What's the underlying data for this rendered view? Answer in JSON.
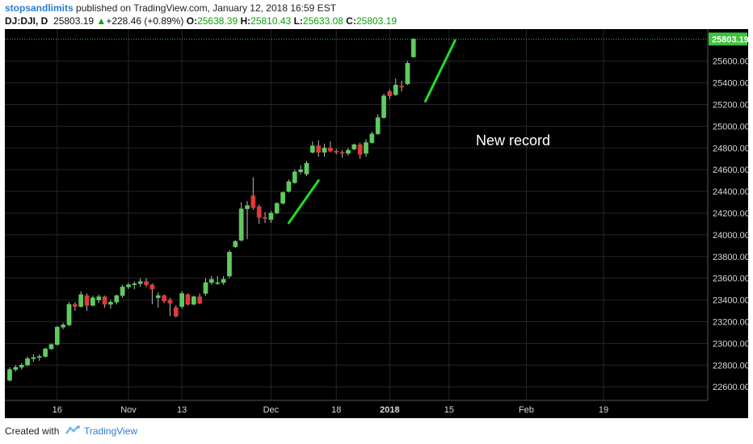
{
  "header": {
    "author": "stopsandlimits",
    "published": "published on TradingView.com, January 12, 2018 16:59 EST",
    "symbol": "DJ:DJI, D",
    "last": "25803.19",
    "change": "+228.46 (+0.89%)",
    "o_label": "O:",
    "o_value": "25638.39",
    "h_label": "H:",
    "h_value": "25810.43",
    "l_label": "L:",
    "l_value": "25633.08",
    "c_label": "C:",
    "c_value": "25803.19"
  },
  "footer": {
    "created_with": "Created with",
    "brand": "TradingView"
  },
  "colors": {
    "up": "#5ecb5e",
    "down": "#e03a3a",
    "background": "#000000",
    "annotation": "#22dd22",
    "price_line": "#3fc23f"
  },
  "chart_data": {
    "type": "candlestick",
    "ylim": [
      22475,
      25895
    ],
    "yticks": [
      22600,
      22800,
      23000,
      23200,
      23400,
      23600,
      23800,
      24000,
      24200,
      24400,
      24600,
      24800,
      25000,
      25200,
      25400,
      25600
    ],
    "ytick_labels": [
      "22600.00",
      "22800.00",
      "23000.00",
      "23200.00",
      "23400.00",
      "23600.00",
      "23800.00",
      "24000.00",
      "24200.00",
      "24400.00",
      "24600.00",
      "24800.00",
      "25000.00",
      "25200.00",
      "25400.00",
      "25600.00"
    ],
    "xticks": [
      {
        "label": "16",
        "index": 8
      },
      {
        "label": "Nov",
        "index": 20
      },
      {
        "label": "13",
        "index": 29
      },
      {
        "label": "Dec",
        "index": 44
      },
      {
        "label": "18",
        "index": 55
      },
      {
        "label": "2018",
        "index": 64
      },
      {
        "label": "15",
        "index": 74
      },
      {
        "label": "Feb",
        "index": 87
      },
      {
        "label": "19",
        "index": 100
      }
    ],
    "last_price_label": "25803.19",
    "last_price": 25803.19,
    "annotation": "New record",
    "trend_lines": [
      {
        "from": [
          47,
          24110
        ],
        "to": [
          52,
          24500
        ]
      },
      {
        "from": [
          70,
          25230
        ],
        "to": [
          75,
          25790
        ]
      }
    ],
    "candles": [
      {
        "o": 22660,
        "h": 22780,
        "l": 22650,
        "c": 22760
      },
      {
        "o": 22760,
        "h": 22800,
        "l": 22740,
        "c": 22780
      },
      {
        "o": 22780,
        "h": 22820,
        "l": 22760,
        "c": 22800
      },
      {
        "o": 22800,
        "h": 22880,
        "l": 22790,
        "c": 22860
      },
      {
        "o": 22860,
        "h": 22900,
        "l": 22830,
        "c": 22870
      },
      {
        "o": 22870,
        "h": 22900,
        "l": 22840,
        "c": 22880
      },
      {
        "o": 22880,
        "h": 22960,
        "l": 22870,
        "c": 22950
      },
      {
        "o": 22950,
        "h": 23000,
        "l": 22940,
        "c": 22990
      },
      {
        "o": 22990,
        "h": 23160,
        "l": 22980,
        "c": 23150
      },
      {
        "o": 23150,
        "h": 23190,
        "l": 23130,
        "c": 23170
      },
      {
        "o": 23170,
        "h": 23380,
        "l": 23160,
        "c": 23360
      },
      {
        "o": 23360,
        "h": 23380,
        "l": 23300,
        "c": 23340
      },
      {
        "o": 23340,
        "h": 23480,
        "l": 23330,
        "c": 23450
      },
      {
        "o": 23440,
        "h": 23460,
        "l": 23300,
        "c": 23350
      },
      {
        "o": 23350,
        "h": 23440,
        "l": 23340,
        "c": 23420
      },
      {
        "o": 23400,
        "h": 23450,
        "l": 23370,
        "c": 23430
      },
      {
        "o": 23430,
        "h": 23440,
        "l": 23330,
        "c": 23360
      },
      {
        "o": 23360,
        "h": 23400,
        "l": 23320,
        "c": 23380
      },
      {
        "o": 23380,
        "h": 23450,
        "l": 23360,
        "c": 23440
      },
      {
        "o": 23440,
        "h": 23540,
        "l": 23420,
        "c": 23520
      },
      {
        "o": 23520,
        "h": 23560,
        "l": 23500,
        "c": 23540
      },
      {
        "o": 23540,
        "h": 23570,
        "l": 23500,
        "c": 23550
      },
      {
        "o": 23550,
        "h": 23600,
        "l": 23520,
        "c": 23570
      },
      {
        "o": 23570,
        "h": 23600,
        "l": 23520,
        "c": 23540
      },
      {
        "o": 23540,
        "h": 23550,
        "l": 23360,
        "c": 23500
      },
      {
        "o": 23420,
        "h": 23470,
        "l": 23330,
        "c": 23440
      },
      {
        "o": 23440,
        "h": 23450,
        "l": 23370,
        "c": 23390
      },
      {
        "o": 23400,
        "h": 23420,
        "l": 23250,
        "c": 23370
      },
      {
        "o": 23330,
        "h": 23350,
        "l": 23240,
        "c": 23250
      },
      {
        "o": 23340,
        "h": 23480,
        "l": 23320,
        "c": 23460
      },
      {
        "o": 23450,
        "h": 23460,
        "l": 23350,
        "c": 23360
      },
      {
        "o": 23360,
        "h": 23440,
        "l": 23350,
        "c": 23430
      },
      {
        "o": 23430,
        "h": 23460,
        "l": 23360,
        "c": 23370
      },
      {
        "o": 23460,
        "h": 23600,
        "l": 23440,
        "c": 23560
      },
      {
        "o": 23560,
        "h": 23620,
        "l": 23540,
        "c": 23590
      },
      {
        "o": 23560,
        "h": 23620,
        "l": 23540,
        "c": 23560
      },
      {
        "o": 23560,
        "h": 23620,
        "l": 23540,
        "c": 23590
      },
      {
        "o": 23620,
        "h": 23860,
        "l": 23600,
        "c": 23840
      },
      {
        "o": 23890,
        "h": 23950,
        "l": 23880,
        "c": 23940
      },
      {
        "o": 23950,
        "h": 24300,
        "l": 23940,
        "c": 24240
      },
      {
        "o": 24240,
        "h": 24310,
        "l": 23960,
        "c": 24270
      },
      {
        "o": 24360,
        "h": 24530,
        "l": 24230,
        "c": 24250
      },
      {
        "o": 24260,
        "h": 24280,
        "l": 24100,
        "c": 24160
      },
      {
        "o": 24160,
        "h": 24210,
        "l": 24110,
        "c": 24150
      },
      {
        "o": 24140,
        "h": 24220,
        "l": 24110,
        "c": 24200
      },
      {
        "o": 24200,
        "h": 24300,
        "l": 24190,
        "c": 24290
      },
      {
        "o": 24290,
        "h": 24400,
        "l": 24280,
        "c": 24390
      },
      {
        "o": 24400,
        "h": 24510,
        "l": 24390,
        "c": 24490
      },
      {
        "o": 24480,
        "h": 24600,
        "l": 24470,
        "c": 24580
      },
      {
        "o": 24580,
        "h": 24640,
        "l": 24560,
        "c": 24600
      },
      {
        "o": 24560,
        "h": 24680,
        "l": 24540,
        "c": 24660
      },
      {
        "o": 24760,
        "h": 24860,
        "l": 24750,
        "c": 24820
      },
      {
        "o": 24820,
        "h": 24870,
        "l": 24720,
        "c": 24760
      },
      {
        "o": 24760,
        "h": 24840,
        "l": 24720,
        "c": 24800
      },
      {
        "o": 24800,
        "h": 24860,
        "l": 24760,
        "c": 24770
      },
      {
        "o": 24770,
        "h": 24790,
        "l": 24740,
        "c": 24760
      },
      {
        "o": 24760,
        "h": 24780,
        "l": 24710,
        "c": 24750
      },
      {
        "o": 24750,
        "h": 24800,
        "l": 24730,
        "c": 24780
      },
      {
        "o": 24790,
        "h": 24840,
        "l": 24780,
        "c": 24830
      },
      {
        "o": 24830,
        "h": 24850,
        "l": 24700,
        "c": 24740
      },
      {
        "o": 24750,
        "h": 24880,
        "l": 24720,
        "c": 24850
      },
      {
        "o": 24850,
        "h": 24950,
        "l": 24840,
        "c": 24930
      },
      {
        "o": 24930,
        "h": 25110,
        "l": 24920,
        "c": 25080
      },
      {
        "o": 25080,
        "h": 25300,
        "l": 25070,
        "c": 25280
      },
      {
        "o": 25320,
        "h": 25340,
        "l": 25250,
        "c": 25280
      },
      {
        "o": 25290,
        "h": 25440,
        "l": 25280,
        "c": 25380
      },
      {
        "o": 25370,
        "h": 25420,
        "l": 25320,
        "c": 25360
      },
      {
        "o": 25390,
        "h": 25600,
        "l": 25380,
        "c": 25580
      },
      {
        "o": 25638.39,
        "h": 25810.43,
        "l": 25633.08,
        "c": 25803.19
      }
    ]
  }
}
